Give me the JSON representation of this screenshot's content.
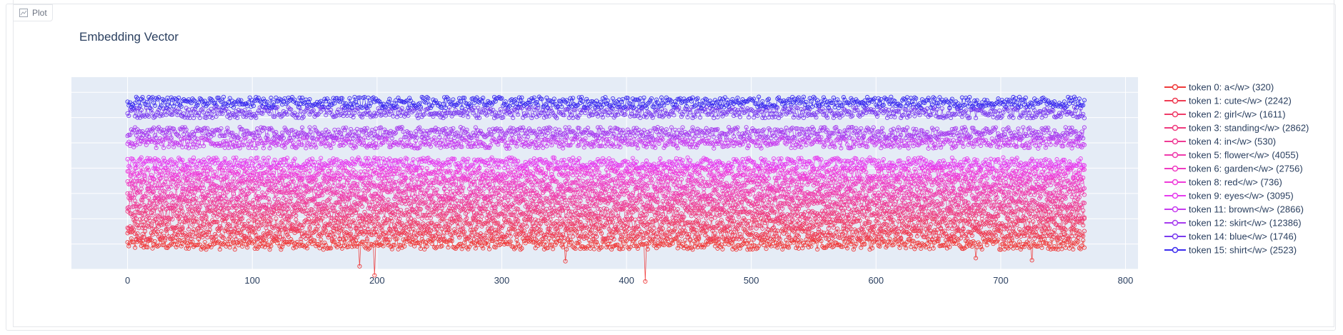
{
  "tab": {
    "label": "Plot",
    "icon": "chart-icon"
  },
  "chart_data": {
    "type": "line",
    "title": "Embedding Vector",
    "xlabel": "",
    "ylabel": "",
    "xlim": [
      -45,
      810
    ],
    "ylim": [
      -17.5,
      1.5
    ],
    "x_ticks": [
      0,
      100,
      200,
      300,
      400,
      500,
      600,
      700,
      800
    ],
    "y_ticks": [],
    "grid": true,
    "legend_position": "right",
    "x_range": [
      0,
      767
    ],
    "series": [
      {
        "name": "token 0: a</w> (320)",
        "color": "#ef3b3b",
        "offset": -15,
        "spikes": [
          [
            186,
            -2.2
          ],
          [
            198,
            -3.1
          ],
          [
            415,
            -3.7
          ],
          [
            351,
            -1.7
          ],
          [
            680,
            -1.4
          ],
          [
            725,
            -1.6
          ]
        ]
      },
      {
        "name": "token 1: cute</w> (2242)",
        "color": "#ef3b52",
        "offset": -14
      },
      {
        "name": "token 2: girl</w> (1611)",
        "color": "#ef3b68",
        "offset": -13
      },
      {
        "name": "token 3: standing</w> (2862)",
        "color": "#ef3b7f",
        "offset": -12
      },
      {
        "name": "token 4: in</w> (530)",
        "color": "#ef3b95",
        "offset": -11
      },
      {
        "name": "token 5: flower</w> (4055)",
        "color": "#ef3bac",
        "offset": -10
      },
      {
        "name": "token 6: garden</w> (2756)",
        "color": "#ef3bc2",
        "offset": -9
      },
      {
        "name": "token 8: red</w> (736)",
        "color": "#ef3bd9",
        "offset": -8
      },
      {
        "name": "token 9: eyes</w> (3095)",
        "color": "#e63bef",
        "offset": -7
      },
      {
        "name": "token 11: brown</w> (2866)",
        "color": "#c63bef",
        "offset": -5
      },
      {
        "name": "token 12: skirt</w> (12386)",
        "color": "#a63bef",
        "offset": -4
      },
      {
        "name": "token 14: blue</w> (1746)",
        "color": "#7a3bef",
        "offset": -2
      },
      {
        "name": "token 15: shirt</w> (2523)",
        "color": "#3b2bef",
        "offset": -1
      }
    ]
  }
}
